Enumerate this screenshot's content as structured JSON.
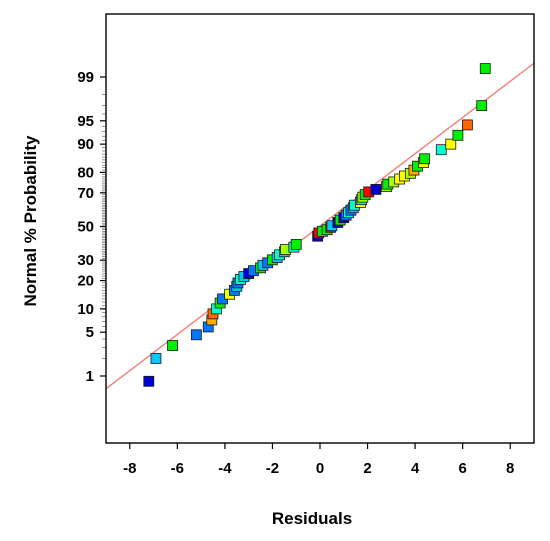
{
  "chart_data": {
    "type": "scatter",
    "title": "",
    "xlabel": "Residuals",
    "ylabel": "Normal % Probability",
    "xlim": [
      -9,
      9
    ],
    "ylim_percent": [
      0.2,
      99.9
    ],
    "y_scale": "normal-probability",
    "x_ticks": [
      -8,
      -6,
      -4,
      -2,
      0,
      2,
      4,
      6,
      8
    ],
    "x_tick_labels": [
      "-8",
      "-6",
      "-4",
      "-2",
      "0",
      "2",
      "4",
      "6",
      "8"
    ],
    "y_ticks": [
      1,
      5,
      10,
      20,
      30,
      50,
      70,
      80,
      90,
      95,
      99
    ],
    "y_tick_labels": [
      "1",
      "5",
      "10",
      "20",
      "30",
      "50",
      "70",
      "80",
      "90",
      "95",
      "99"
    ],
    "grid": false,
    "legend": "none",
    "reference_line": {
      "x": [
        -9,
        9
      ],
      "color": "#f08070"
    },
    "marker_color_scale": [
      "#0000cc",
      "#0077ff",
      "#00c8ff",
      "#00ffcc",
      "#00ee00",
      "#aaff00",
      "#ffff00",
      "#ffaa00",
      "#ff6600",
      "#ff0000"
    ],
    "points": [
      {
        "x": -7.2,
        "p": 0.8,
        "color": "#0000cc"
      },
      {
        "x": -6.9,
        "p": 2.0,
        "color": "#00c8ff"
      },
      {
        "x": -6.2,
        "p": 3.2,
        "color": "#00ee00"
      },
      {
        "x": -5.2,
        "p": 4.6,
        "color": "#0077ff"
      },
      {
        "x": -4.7,
        "p": 5.9,
        "color": "#0077ff"
      },
      {
        "x": -4.55,
        "p": 7.3,
        "color": "#ffaa00"
      },
      {
        "x": -4.5,
        "p": 8.7,
        "color": "#ff6600"
      },
      {
        "x": -4.35,
        "p": 10.0,
        "color": "#00ffcc"
      },
      {
        "x": -4.2,
        "p": 11.7,
        "color": "#00ee00"
      },
      {
        "x": -4.1,
        "p": 13.0,
        "color": "#0077ff"
      },
      {
        "x": -3.8,
        "p": 14.6,
        "color": "#ffff00"
      },
      {
        "x": -3.6,
        "p": 16.0,
        "color": "#0077ff"
      },
      {
        "x": -3.5,
        "p": 17.6,
        "color": "#00c8ff"
      },
      {
        "x": -3.45,
        "p": 19.0,
        "color": "#0077ff"
      },
      {
        "x": -3.35,
        "p": 20.5,
        "color": "#00ffcc"
      },
      {
        "x": -3.2,
        "p": 21.8,
        "color": "#00c8ff"
      },
      {
        "x": -3.0,
        "p": 23.2,
        "color": "#0000cc"
      },
      {
        "x": -2.8,
        "p": 24.6,
        "color": "#0077ff"
      },
      {
        "x": -2.5,
        "p": 26.0,
        "color": "#00ee00"
      },
      {
        "x": -2.4,
        "p": 27.3,
        "color": "#00c8ff"
      },
      {
        "x": -2.2,
        "p": 28.6,
        "color": "#0077ff"
      },
      {
        "x": -2.0,
        "p": 30.2,
        "color": "#00ee00"
      },
      {
        "x": -1.8,
        "p": 31.5,
        "color": "#00c8ff"
      },
      {
        "x": -1.7,
        "p": 33.0,
        "color": "#00ffcc"
      },
      {
        "x": -1.5,
        "p": 34.7,
        "color": "#00c8ff"
      },
      {
        "x": -1.45,
        "p": 36.0,
        "color": "#aaff00"
      },
      {
        "x": -1.1,
        "p": 37.4,
        "color": "#00ffcc"
      },
      {
        "x": -1.0,
        "p": 39.0,
        "color": "#00ee00"
      },
      {
        "x": -0.1,
        "p": 44.0,
        "color": "#0000cc"
      },
      {
        "x": -0.05,
        "p": 46.0,
        "color": "#ff0000"
      },
      {
        "x": 0.1,
        "p": 47.0,
        "color": "#00ee00"
      },
      {
        "x": 0.3,
        "p": 48.0,
        "color": "#00ee00"
      },
      {
        "x": 0.45,
        "p": 49.5,
        "color": "#ff0000"
      },
      {
        "x": 0.5,
        "p": 50.5,
        "color": "#00c8ff"
      },
      {
        "x": 0.75,
        "p": 52.5,
        "color": "#0000cc"
      },
      {
        "x": 0.85,
        "p": 54.0,
        "color": "#00ee00"
      },
      {
        "x": 1.0,
        "p": 55.5,
        "color": "#0000cc"
      },
      {
        "x": 1.1,
        "p": 57.0,
        "color": "#0077ff"
      },
      {
        "x": 1.2,
        "p": 58.5,
        "color": "#00ffcc"
      },
      {
        "x": 1.3,
        "p": 60.0,
        "color": "#0077ff"
      },
      {
        "x": 1.4,
        "p": 61.5,
        "color": "#00c8ff"
      },
      {
        "x": 1.45,
        "p": 63.0,
        "color": "#00ffcc"
      },
      {
        "x": 1.7,
        "p": 64.6,
        "color": "#ffff00"
      },
      {
        "x": 1.75,
        "p": 66.2,
        "color": "#00ffcc"
      },
      {
        "x": 1.8,
        "p": 67.6,
        "color": "#aaff00"
      },
      {
        "x": 1.9,
        "p": 69.0,
        "color": "#00ee00"
      },
      {
        "x": 2.05,
        "p": 70.5,
        "color": "#ff0000"
      },
      {
        "x": 2.35,
        "p": 71.8,
        "color": "#0000cc"
      },
      {
        "x": 2.8,
        "p": 73.3,
        "color": "#aaff00"
      },
      {
        "x": 2.85,
        "p": 74.5,
        "color": "#00ee00"
      },
      {
        "x": 3.1,
        "p": 75.6,
        "color": "#aaff00"
      },
      {
        "x": 3.35,
        "p": 77.0,
        "color": "#ffff00"
      },
      {
        "x": 3.55,
        "p": 78.4,
        "color": "#ffff00"
      },
      {
        "x": 3.8,
        "p": 79.6,
        "color": "#aaff00"
      },
      {
        "x": 3.95,
        "p": 81.0,
        "color": "#ffaa00"
      },
      {
        "x": 4.1,
        "p": 82.6,
        "color": "#00ee00"
      },
      {
        "x": 4.35,
        "p": 84.0,
        "color": "#ffff00"
      },
      {
        "x": 4.4,
        "p": 85.4,
        "color": "#00ee00"
      },
      {
        "x": 5.1,
        "p": 88.4,
        "color": "#00ffcc"
      },
      {
        "x": 5.5,
        "p": 90.0,
        "color": "#ffff00"
      },
      {
        "x": 5.8,
        "p": 92.2,
        "color": "#00ee00"
      },
      {
        "x": 6.2,
        "p": 94.3,
        "color": "#ff6600"
      },
      {
        "x": 6.8,
        "p": 97.0,
        "color": "#00ee00"
      },
      {
        "x": 6.95,
        "p": 99.3,
        "color": "#00ee00"
      }
    ]
  }
}
